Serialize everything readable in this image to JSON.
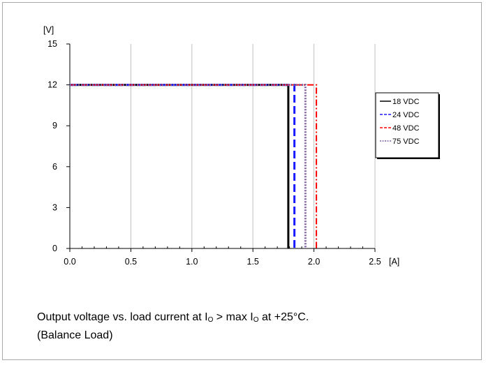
{
  "chart_data": {
    "type": "line",
    "title": "",
    "xlabel": "[A]",
    "ylabel": "[V]",
    "xlim": [
      0,
      2.5
    ],
    "ylim": [
      0,
      15
    ],
    "x_ticks": [
      0,
      0.5,
      1.0,
      1.5,
      2.0,
      2.5
    ],
    "x_tick_labels": [
      "0.0",
      "0.5",
      "1.0",
      "1.5",
      "2.0",
      "2.5"
    ],
    "y_ticks": [
      0,
      3,
      6,
      9,
      12,
      15
    ],
    "y_tick_labels": [
      "0",
      "3",
      "6",
      "9",
      "12",
      "15"
    ],
    "grid": "vertical",
    "legend_position": "right",
    "series": [
      {
        "name": "18 VDC",
        "color": "#000000",
        "dash": "solid",
        "points": [
          [
            0,
            12
          ],
          [
            1.79,
            12
          ],
          [
            1.79,
            0
          ]
        ]
      },
      {
        "name": "24 VDC",
        "color": "#1a1aff",
        "dash": "long-dash",
        "points": [
          [
            0,
            12
          ],
          [
            1.84,
            12
          ],
          [
            1.84,
            0
          ]
        ]
      },
      {
        "name": "48 VDC",
        "color": "#ff0000",
        "dash": "dash-dot",
        "points": [
          [
            0,
            12
          ],
          [
            2.02,
            12
          ],
          [
            2.02,
            0
          ]
        ]
      },
      {
        "name": "75 VDC",
        "color": "#8064a2",
        "dash": "dot",
        "points": [
          [
            0,
            12
          ],
          [
            1.93,
            12
          ],
          [
            1.93,
            0
          ]
        ]
      }
    ]
  },
  "caption": {
    "line1_a": "Output voltage vs. load current at I",
    "line1_sub1": "O",
    "line1_b": " > max I",
    "line1_sub2": "O",
    "line1_c": " at +25°C.",
    "line2": "(Balance Load)"
  }
}
